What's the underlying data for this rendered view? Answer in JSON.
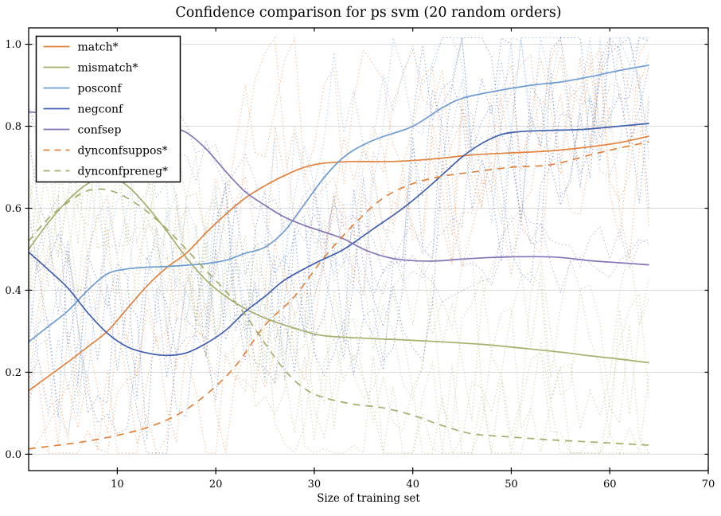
{
  "figure": {
    "background": "#ffffff"
  },
  "chart_data": {
    "type": "line",
    "title": "Confidence comparison for ps svm (20 random orders)",
    "xlabel": "Size of training set",
    "ylabel": "",
    "xlim": [
      1,
      70
    ],
    "ylim": [
      -0.04,
      1.04
    ],
    "xticks": [
      "10",
      "20",
      "30",
      "40",
      "50",
      "60",
      "70"
    ],
    "yticks": [
      "0.0",
      "0.2",
      "0.4",
      "0.6",
      "0.8",
      "1.0"
    ],
    "grid": "horizontal",
    "grid_color": "#d9d9d9",
    "legend_position": "upper-left",
    "legend_border_color": "#000000",
    "series": [
      {
        "name": "match*",
        "color": "#e2823c",
        "style": "solid",
        "run_count": 3,
        "run_noise": 0.5,
        "points": [
          [
            1,
            0.155
          ],
          [
            3,
            0.19
          ],
          [
            5,
            0.225
          ],
          [
            7,
            0.262
          ],
          [
            9,
            0.3
          ],
          [
            11,
            0.355
          ],
          [
            13,
            0.41
          ],
          [
            15,
            0.455
          ],
          [
            17,
            0.49
          ],
          [
            19,
            0.54
          ],
          [
            21,
            0.585
          ],
          [
            23,
            0.625
          ],
          [
            25,
            0.655
          ],
          [
            27,
            0.68
          ],
          [
            29,
            0.7
          ],
          [
            31,
            0.71
          ],
          [
            34,
            0.714
          ],
          [
            38,
            0.714
          ],
          [
            42,
            0.72
          ],
          [
            46,
            0.73
          ],
          [
            50,
            0.735
          ],
          [
            54,
            0.74
          ],
          [
            58,
            0.75
          ],
          [
            61,
            0.76
          ],
          [
            64,
            0.776
          ]
        ]
      },
      {
        "name": "mismatch*",
        "color": "#a6ae6c",
        "style": "solid",
        "run_count": 3,
        "run_noise": 0.45,
        "points": [
          [
            1,
            0.5
          ],
          [
            3,
            0.565
          ],
          [
            5,
            0.62
          ],
          [
            7,
            0.66
          ],
          [
            9,
            0.678
          ],
          [
            11,
            0.655
          ],
          [
            13,
            0.605
          ],
          [
            15,
            0.545
          ],
          [
            17,
            0.48
          ],
          [
            19,
            0.425
          ],
          [
            21,
            0.385
          ],
          [
            23,
            0.355
          ],
          [
            25,
            0.332
          ],
          [
            27,
            0.315
          ],
          [
            29,
            0.3
          ],
          [
            31,
            0.289
          ],
          [
            35,
            0.283
          ],
          [
            39,
            0.279
          ],
          [
            43,
            0.274
          ],
          [
            47,
            0.268
          ],
          [
            51,
            0.259
          ],
          [
            55,
            0.249
          ],
          [
            58,
            0.24
          ],
          [
            61,
            0.232
          ],
          [
            64,
            0.223
          ]
        ]
      },
      {
        "name": "posconf",
        "color": "#6d9cd1",
        "style": "solid",
        "run_count": 3,
        "run_noise": 0.5,
        "points": [
          [
            1,
            0.274
          ],
          [
            3,
            0.312
          ],
          [
            5,
            0.35
          ],
          [
            7,
            0.4
          ],
          [
            9,
            0.44
          ],
          [
            11,
            0.452
          ],
          [
            13,
            0.456
          ],
          [
            15,
            0.458
          ],
          [
            17,
            0.461
          ],
          [
            19,
            0.465
          ],
          [
            21,
            0.473
          ],
          [
            23,
            0.49
          ],
          [
            25,
            0.505
          ],
          [
            27,
            0.545
          ],
          [
            29,
            0.61
          ],
          [
            31,
            0.675
          ],
          [
            33,
            0.725
          ],
          [
            35,
            0.755
          ],
          [
            37,
            0.775
          ],
          [
            40,
            0.8
          ],
          [
            43,
            0.845
          ],
          [
            45,
            0.868
          ],
          [
            48,
            0.884
          ],
          [
            52,
            0.9
          ],
          [
            55,
            0.908
          ],
          [
            58,
            0.921
          ],
          [
            61,
            0.936
          ],
          [
            64,
            0.949
          ]
        ]
      },
      {
        "name": "negconf",
        "color": "#3f5fae",
        "style": "solid",
        "run_count": 4,
        "run_noise": 0.55,
        "points": [
          [
            1,
            0.493
          ],
          [
            3,
            0.45
          ],
          [
            5,
            0.405
          ],
          [
            7,
            0.345
          ],
          [
            9,
            0.295
          ],
          [
            11,
            0.262
          ],
          [
            13,
            0.247
          ],
          [
            15,
            0.241
          ],
          [
            17,
            0.247
          ],
          [
            19,
            0.27
          ],
          [
            21,
            0.302
          ],
          [
            23,
            0.348
          ],
          [
            25,
            0.385
          ],
          [
            27,
            0.425
          ],
          [
            30,
            0.465
          ],
          [
            33,
            0.5
          ],
          [
            36,
            0.55
          ],
          [
            39,
            0.6
          ],
          [
            42,
            0.66
          ],
          [
            45,
            0.725
          ],
          [
            47,
            0.758
          ],
          [
            49,
            0.78
          ],
          [
            51,
            0.787
          ],
          [
            54,
            0.79
          ],
          [
            57,
            0.792
          ],
          [
            60,
            0.798
          ],
          [
            64,
            0.807
          ]
        ]
      },
      {
        "name": "confsep",
        "color": "#8474b6",
        "style": "solid",
        "run_count": 2,
        "run_noise": 0.16,
        "points": [
          [
            1,
            0.835
          ],
          [
            4,
            0.83
          ],
          [
            7,
            0.822
          ],
          [
            10,
            0.818
          ],
          [
            13,
            0.81
          ],
          [
            15,
            0.8
          ],
          [
            17,
            0.785
          ],
          [
            19,
            0.745
          ],
          [
            21,
            0.69
          ],
          [
            23,
            0.64
          ],
          [
            25,
            0.607
          ],
          [
            27,
            0.578
          ],
          [
            29,
            0.558
          ],
          [
            31,
            0.542
          ],
          [
            33,
            0.525
          ],
          [
            35,
            0.5
          ],
          [
            37,
            0.483
          ],
          [
            39,
            0.474
          ],
          [
            42,
            0.471
          ],
          [
            45,
            0.476
          ],
          [
            48,
            0.48
          ],
          [
            52,
            0.482
          ],
          [
            55,
            0.48
          ],
          [
            58,
            0.472
          ],
          [
            61,
            0.467
          ],
          [
            64,
            0.462
          ]
        ]
      },
      {
        "name": "dynconfsuppos*",
        "color": "#e2823c",
        "style": "dashed",
        "run_count": 2,
        "run_noise": 0.4,
        "points": [
          [
            1,
            0.013
          ],
          [
            4,
            0.022
          ],
          [
            7,
            0.032
          ],
          [
            10,
            0.046
          ],
          [
            13,
            0.065
          ],
          [
            16,
            0.095
          ],
          [
            19,
            0.145
          ],
          [
            22,
            0.215
          ],
          [
            25,
            0.315
          ],
          [
            28,
            0.385
          ],
          [
            31,
            0.48
          ],
          [
            34,
            0.56
          ],
          [
            37,
            0.625
          ],
          [
            40,
            0.66
          ],
          [
            43,
            0.678
          ],
          [
            46,
            0.688
          ],
          [
            50,
            0.7
          ],
          [
            54,
            0.706
          ],
          [
            58,
            0.73
          ],
          [
            61,
            0.747
          ],
          [
            64,
            0.762
          ]
        ]
      },
      {
        "name": "dynconfpreneg*",
        "color": "#a6ae6c",
        "style": "dashed",
        "run_count": 3,
        "run_noise": 0.45,
        "points": [
          [
            1,
            0.52
          ],
          [
            3,
            0.575
          ],
          [
            5,
            0.615
          ],
          [
            7,
            0.643
          ],
          [
            9,
            0.645
          ],
          [
            11,
            0.625
          ],
          [
            13,
            0.592
          ],
          [
            15,
            0.55
          ],
          [
            17,
            0.5
          ],
          [
            19,
            0.448
          ],
          [
            21,
            0.398
          ],
          [
            23,
            0.34
          ],
          [
            25,
            0.27
          ],
          [
            27,
            0.205
          ],
          [
            29,
            0.16
          ],
          [
            31,
            0.138
          ],
          [
            34,
            0.122
          ],
          [
            37,
            0.113
          ],
          [
            40,
            0.095
          ],
          [
            43,
            0.07
          ],
          [
            46,
            0.05
          ],
          [
            50,
            0.042
          ],
          [
            54,
            0.035
          ],
          [
            58,
            0.03
          ],
          [
            61,
            0.026
          ],
          [
            64,
            0.022
          ]
        ]
      }
    ],
    "background_runs": {
      "description": "Faint dotted jagged lines: individual random-order runs fluctuating around each smoothed mean curve, x from 1 to 64",
      "x_range": [
        1,
        64
      ],
      "x_step": 1,
      "total_lines": 20,
      "opacity": 0.55,
      "seed": 20
    }
  }
}
